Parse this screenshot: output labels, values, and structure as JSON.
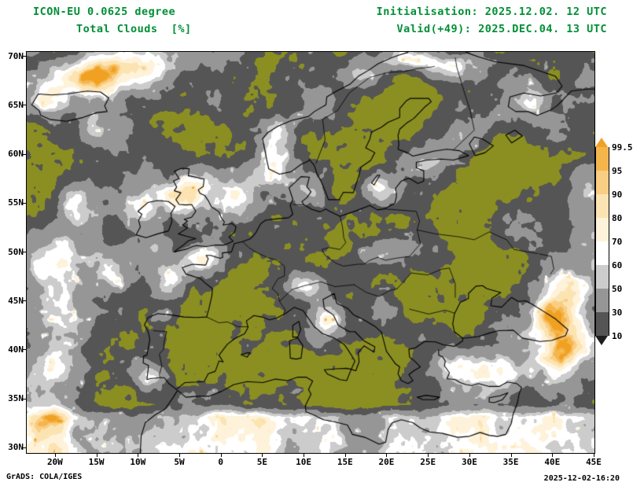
{
  "header": {
    "model_title": "ICON-EU 0.0625 degree",
    "variable_title": "Total Clouds  [%]",
    "initialisation": "Initialisation: 2025.12.02. 12 UTC",
    "valid": "Valid(+49): 2025.DEC.04. 13 UTC"
  },
  "footer": {
    "credit": "GrADS: COLA/IGES",
    "timestamp": "2025-12-02-16:20"
  },
  "chart_data": {
    "type": "heatmap",
    "title": "Total Clouds [%]",
    "model": "ICON-EU 0.0625 degree",
    "unit": "%",
    "init_time": "2025.12.02. 12 UTC",
    "valid_time": "2025.DEC.04. 13 UTC",
    "forecast_offset_hours": 49,
    "lon_range_deg": [
      -23.5,
      45
    ],
    "lat_range_deg": [
      29.5,
      70.5
    ],
    "grid_lines": false,
    "legend_position": "right",
    "lat_ticks": [
      {
        "label": "70N",
        "value": 70
      },
      {
        "label": "65N",
        "value": 65
      },
      {
        "label": "60N",
        "value": 60
      },
      {
        "label": "55N",
        "value": 55
      },
      {
        "label": "50N",
        "value": 50
      },
      {
        "label": "45N",
        "value": 45
      },
      {
        "label": "40N",
        "value": 40
      },
      {
        "label": "35N",
        "value": 35
      },
      {
        "label": "30N",
        "value": 30
      }
    ],
    "lon_ticks": [
      {
        "label": "20W",
        "value": -20
      },
      {
        "label": "15W",
        "value": -15
      },
      {
        "label": "10W",
        "value": -10
      },
      {
        "label": "5W",
        "value": -5
      },
      {
        "label": "0",
        "value": 0
      },
      {
        "label": "5E",
        "value": 5
      },
      {
        "label": "10E",
        "value": 10
      },
      {
        "label": "15E",
        "value": 15
      },
      {
        "label": "20E",
        "value": 20
      },
      {
        "label": "25E",
        "value": 25
      },
      {
        "label": "30E",
        "value": 30
      },
      {
        "label": "35E",
        "value": 35
      },
      {
        "label": "40E",
        "value": 40
      },
      {
        "label": "45E",
        "value": 45
      }
    ],
    "colorbar": {
      "boundary_labels": [
        "99.5",
        "95",
        "90",
        "80",
        "70",
        "60",
        "50",
        "30",
        "10"
      ],
      "cell_colors": [
        "#f0a122",
        "#f5b54d",
        "#f9cd82",
        "#fce3b2",
        "#fef3da",
        "#ffffff",
        "#cccccc",
        "#969696",
        "#555555",
        "#1e1e1e"
      ],
      "below_scale_color": "#8b8f22"
    },
    "colors": {
      "header_text": "#008f35",
      "axis_text": "#000000",
      "coastline": "#000000",
      "clear_sky_background": "#8b8f22",
      "page_background": "#ffffff"
    }
  }
}
